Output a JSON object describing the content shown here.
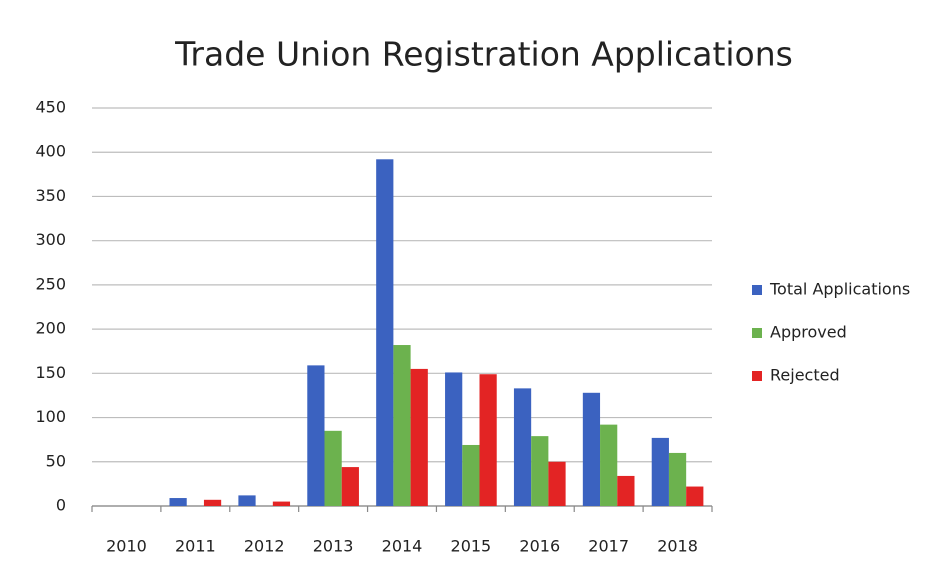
{
  "chart_data": {
    "type": "bar",
    "title": "Trade Union Registration Applications",
    "categories": [
      "2010",
      "2011",
      "2012",
      "2013",
      "2014",
      "2015",
      "2016",
      "2017",
      "2018"
    ],
    "series": [
      {
        "name": "Total Applications",
        "color": "#3b62c0",
        "values": [
          0,
          9,
          12,
          159,
          392,
          151,
          133,
          128,
          77
        ]
      },
      {
        "name": "Approved",
        "color": "#6cb24e",
        "values": [
          0,
          0,
          0,
          85,
          182,
          69,
          79,
          92,
          60
        ]
      },
      {
        "name": "Rejected",
        "color": "#e32424",
        "values": [
          0,
          7,
          5,
          44,
          155,
          149,
          50,
          34,
          22
        ]
      }
    ],
    "ylim": [
      0,
      450
    ],
    "yticks": [
      0,
      50,
      100,
      150,
      200,
      250,
      300,
      350,
      400,
      450
    ],
    "grid": true,
    "legend": "right"
  }
}
